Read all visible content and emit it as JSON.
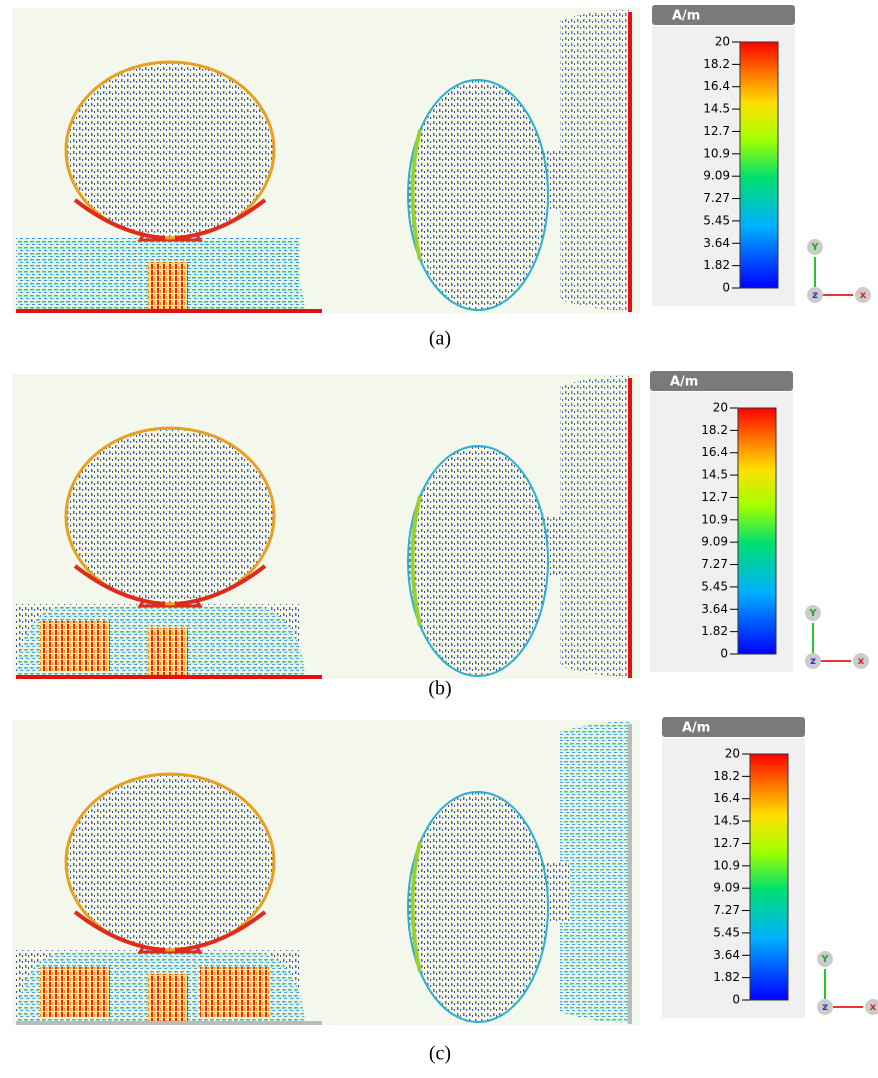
{
  "panels": [
    {
      "caption": "(a)",
      "unit": "A/m",
      "scale": [
        20,
        18.2,
        16.4,
        14.5,
        12.7,
        10.9,
        9.09,
        7.27,
        5.45,
        3.64,
        1.82,
        0
      ],
      "axes": {
        "y": "Y",
        "z": "z",
        "x": "x"
      }
    },
    {
      "caption": "(b)",
      "unit": "A/m",
      "scale": [
        20,
        18.2,
        16.4,
        14.5,
        12.7,
        10.9,
        9.09,
        7.27,
        5.45,
        3.64,
        1.82,
        0
      ],
      "axes": {
        "y": "Y",
        "z": "z",
        "x": "x"
      }
    },
    {
      "caption": "(c)",
      "unit": "A/m",
      "scale": [
        20,
        18.2,
        16.4,
        14.5,
        12.7,
        10.9,
        9.09,
        7.27,
        5.45,
        3.64,
        1.82,
        0
      ],
      "axes": {
        "y": "Y",
        "z": "z",
        "x": "x"
      }
    }
  ]
}
